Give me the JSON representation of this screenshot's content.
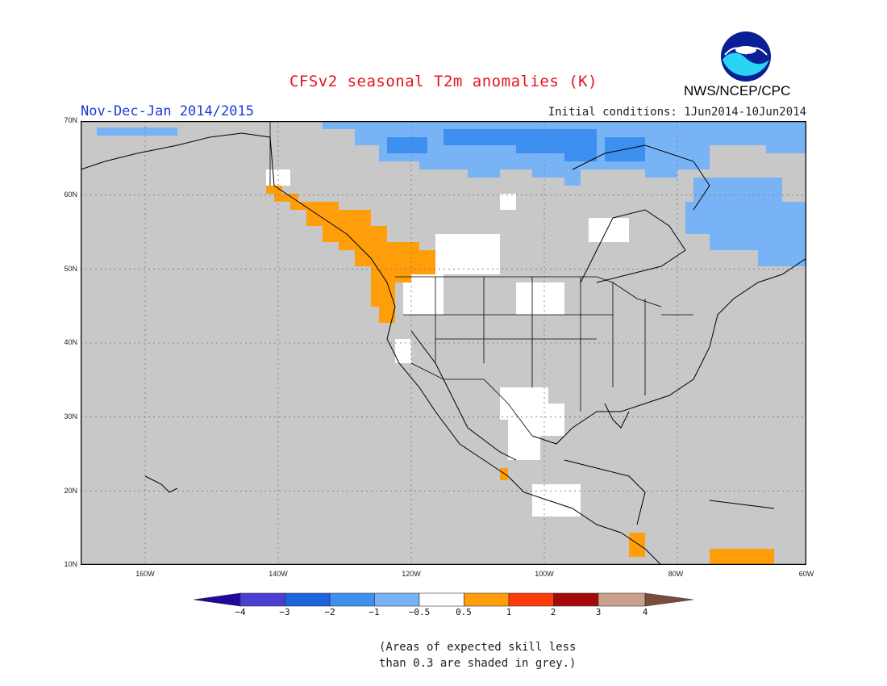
{
  "title": "CFSv2 seasonal T2m anomalies (K)",
  "period": "Nov-Dec-Jan 2014/2015",
  "initial_conditions": "Initial conditions: 1Jun2014-10Jun2014",
  "agency": "NWS/NCEP/CPC",
  "logo_text": "NOAA",
  "lat_labels": [
    "70N",
    "60N",
    "50N",
    "40N",
    "30N",
    "20N",
    "10N"
  ],
  "lon_labels": [
    "160W",
    "140W",
    "120W",
    "100W",
    "80W",
    "60W"
  ],
  "colorbar": {
    "labels": [
      "−4",
      "−3",
      "−2",
      "−1",
      "−0.5",
      "0.5",
      "1",
      "2",
      "3",
      "4"
    ],
    "colors": [
      "#1e08a0",
      "#4b3fd2",
      "#1e64dc",
      "#3d8ff0",
      "#78b4f5",
      "#ffffff",
      "#ff9e0a",
      "#ff3c0a",
      "#a50a0a",
      "#c8a08c",
      "#7d4b3c"
    ]
  },
  "note_lines": [
    "(Areas of expected skill less",
    "than 0.3 are shaded in grey.)"
  ],
  "colors": {
    "mask_grey": "#c8c8c8",
    "cold_light": "#78b4f5",
    "cold_mid": "#3d8ff0",
    "neutral_white": "#ffffff",
    "warm": "#ff9e0a"
  }
}
